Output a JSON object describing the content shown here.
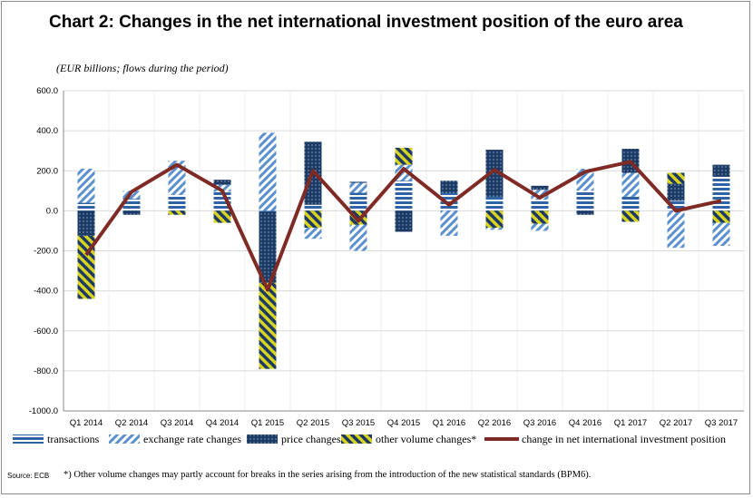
{
  "title": "Chart 2: Changes in the net international investment position of the euro area",
  "unit_note": "(EUR billions; flows during the period)",
  "source": "Source: ECB",
  "footnote": "*) Other volume changes may partly account for breaks in the series arising from the introduction of the new statistical standards (BPM6).",
  "colors": {
    "transactions": "#2e63a6",
    "exchange_rate": "#5b90cf",
    "price": "#1c3a63",
    "other_volume": "#b7b21c",
    "net_change_line": "#7f2a24",
    "grid": "#d9d9d9"
  },
  "chart_data": {
    "type": "bar",
    "stacked": true,
    "categories": [
      "Q1 2014",
      "Q2 2014",
      "Q3 2014",
      "Q4 2014",
      "Q1 2015",
      "Q2 2015",
      "Q3 2015",
      "Q4 2015",
      "Q1 2016",
      "Q2 2016",
      "Q3 2016",
      "Q4 2016",
      "Q1 2017",
      "Q2 2017",
      "Q3 2017"
    ],
    "ylim": [
      -1000,
      600
    ],
    "yticks": [
      600,
      400,
      200,
      0,
      -200,
      -400,
      -600,
      -800,
      -1000
    ],
    "ytick_labels": [
      "600.0",
      "400.0",
      "200.0",
      "0.0",
      "-200.0",
      "-400.0",
      "-600.0",
      "-800.0",
      "-1000.0"
    ],
    "grid": true,
    "legend_position": "bottom",
    "series": [
      {
        "name": "transactions",
        "pattern": "horizontal-lines",
        "values": [
          40,
          60,
          80,
          95,
          -5,
          30,
          90,
          150,
          90,
          70,
          55,
          100,
          70,
          50,
          170
        ]
      },
      {
        "name": "exchange rate changes",
        "pattern": "diagonal-stripes",
        "values": [
          170,
          40,
          170,
          35,
          390,
          0,
          50,
          80,
          0,
          0,
          50,
          110,
          120,
          0,
          0
        ]
      },
      {
        "name": "price changes",
        "pattern": "dots",
        "values": [
          -125,
          -20,
          0,
          25,
          -355,
          315,
          5,
          -105,
          60,
          235,
          20,
          -20,
          120,
          85,
          60
        ]
      },
      {
        "name": "other volume changes*",
        "pattern": "diagonal-hatch",
        "values": [
          -315,
          0,
          -20,
          -60,
          -430,
          -85,
          -70,
          85,
          0,
          -85,
          -65,
          0,
          -55,
          55,
          -60
        ]
      },
      {
        "name": "exchange rate changes (negative)",
        "legend": false,
        "pattern": "diagonal-stripes",
        "values": [
          0,
          0,
          0,
          0,
          0,
          -55,
          -130,
          0,
          -125,
          -10,
          -35,
          0,
          0,
          -185,
          -115
        ]
      }
    ],
    "line": {
      "name": "change in net international investment position",
      "values": [
        -220,
        95,
        230,
        100,
        -395,
        200,
        -50,
        210,
        30,
        205,
        65,
        195,
        245,
        0,
        50
      ]
    }
  }
}
